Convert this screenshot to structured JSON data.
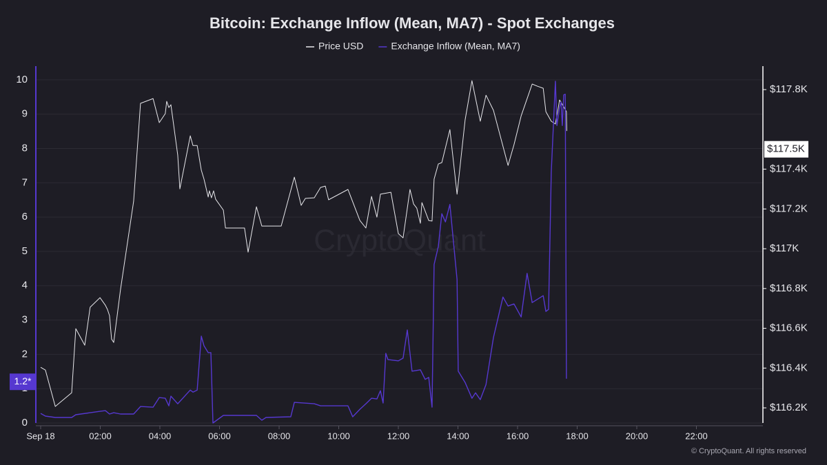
{
  "chart_data": {
    "type": "line",
    "title": "Bitcoin: Exchange Inflow (Mean, MA7) - Spot Exchanges",
    "watermark": "CryptoQuant",
    "footer": "© CryptoQuant. All rights reserved",
    "xlim": [
      0,
      24
    ],
    "xticks": [
      {
        "value": 0,
        "label": "Sep 18"
      },
      {
        "value": 2,
        "label": "02:00"
      },
      {
        "value": 4,
        "label": "04:00"
      },
      {
        "value": 6,
        "label": "06:00"
      },
      {
        "value": 8,
        "label": "08:00"
      },
      {
        "value": 10,
        "label": "10:00"
      },
      {
        "value": 12,
        "label": "12:00"
      },
      {
        "value": 14,
        "label": "14:00"
      },
      {
        "value": 16,
        "label": "16:00"
      },
      {
        "value": 18,
        "label": "18:00"
      },
      {
        "value": 20,
        "label": "20:00"
      },
      {
        "value": 22,
        "label": "22:00"
      }
    ],
    "ylim": [
      0,
      10.4
    ],
    "yticks": [
      0,
      1,
      2,
      3,
      4,
      5,
      6,
      7,
      8,
      9,
      10
    ],
    "y2lim": [
      116124,
      117918
    ],
    "y2ticks": [
      {
        "value": 116200,
        "label": "$116.2K"
      },
      {
        "value": 116400,
        "label": "$116.4K"
      },
      {
        "value": 116600,
        "label": "$116.6K"
      },
      {
        "value": 116800,
        "label": "$116.8K"
      },
      {
        "value": 117000,
        "label": "$117K"
      },
      {
        "value": 117200,
        "label": "$117.2K"
      },
      {
        "value": 117400,
        "label": "$117.4K"
      },
      {
        "value": 117800,
        "label": "$117.8K"
      }
    ],
    "grid": true,
    "series": [
      {
        "name": "Price USD",
        "color": "#e8e8ec",
        "axis": "y2",
        "x": [
          0,
          0.16,
          0.49,
          1.04,
          1.18,
          1.48,
          1.66,
          1.99,
          2.17,
          2.24,
          2.31,
          2.38,
          2.45,
          2.68,
          3.12,
          3.35,
          3.77,
          3.98,
          4.18,
          4.23,
          4.3,
          4.37,
          4.6,
          4.67,
          5.02,
          5.11,
          5.25,
          5.39,
          5.48,
          5.62,
          5.66,
          5.73,
          5.8,
          5.87,
          6.13,
          6.2,
          6.84,
          6.96,
          7.24,
          7.42,
          8.07,
          8.51,
          8.74,
          8.88,
          9.18,
          9.39,
          9.55,
          9.66,
          10.31,
          10.71,
          10.91,
          11.1,
          11.28,
          11.4,
          11.49,
          11.75,
          12.0,
          12.16,
          12.39,
          12.51,
          12.62,
          12.74,
          12.79,
          13.02,
          13.13,
          13.2,
          13.34,
          13.46,
          13.73,
          13.97,
          14.24,
          14.47,
          14.75,
          14.94,
          15.19,
          15.68,
          15.88,
          16.12,
          16.49,
          16.67,
          16.86,
          16.95,
          17.13,
          17.27,
          17.41,
          17.55,
          17.64,
          17.65
        ],
        "values": [
          116404,
          116390,
          116207,
          116276,
          116598,
          116515,
          116706,
          116754,
          116716,
          116695,
          116664,
          116546,
          116529,
          116796,
          117239,
          117731,
          117755,
          117634,
          117679,
          117741,
          117710,
          117724,
          117471,
          117301,
          117568,
          117519,
          117519,
          117395,
          117350,
          117260,
          117291,
          117256,
          117291,
          117249,
          117194,
          117104,
          117104,
          116983,
          117211,
          117114,
          117114,
          117360,
          117218,
          117253,
          117256,
          117308,
          117315,
          117246,
          117298,
          117142,
          117104,
          117263,
          117159,
          117274,
          117277,
          117284,
          117076,
          117055,
          117298,
          117225,
          117204,
          117128,
          117232,
          117142,
          117139,
          117350,
          117426,
          117433,
          117599,
          117274,
          117648,
          117845,
          117641,
          117772,
          117696,
          117419,
          117523,
          117668,
          117828,
          117817,
          117807,
          117689,
          117641,
          117627,
          117748,
          117713,
          117689,
          117592
        ]
      },
      {
        "name": "Exchange Inflow (Mean, MA7)",
        "color": "#5638d0",
        "axis": "y",
        "x": [
          0,
          0.16,
          0.49,
          1.04,
          1.18,
          1.66,
          1.99,
          2.17,
          2.31,
          2.45,
          2.68,
          3.12,
          3.35,
          3.77,
          3.98,
          4.18,
          4.3,
          4.37,
          4.6,
          5.02,
          5.11,
          5.25,
          5.39,
          5.48,
          5.62,
          5.71,
          5.78,
          6.13,
          7.24,
          7.42,
          7.56,
          8.39,
          8.51,
          9.18,
          9.39,
          10.31,
          10.47,
          10.71,
          10.91,
          11.1,
          11.28,
          11.4,
          11.49,
          11.58,
          11.65,
          12.0,
          12.16,
          12.3,
          12.46,
          12.74,
          12.9,
          13.02,
          13.13,
          13.2,
          13.34,
          13.46,
          13.58,
          13.73,
          13.97,
          14.01,
          14.24,
          14.47,
          14.59,
          14.75,
          14.94,
          15.19,
          15.51,
          15.68,
          15.88,
          16.12,
          16.32,
          16.49,
          16.86,
          16.95,
          17.04,
          17.13,
          17.27,
          17.32,
          17.41,
          17.46,
          17.5,
          17.55,
          17.6,
          17.64
        ],
        "values": [
          0.28,
          0.2,
          0.16,
          0.16,
          0.24,
          0.3,
          0.34,
          0.36,
          0.26,
          0.3,
          0.26,
          0.26,
          0.48,
          0.46,
          0.74,
          0.72,
          0.5,
          0.78,
          0.56,
          0.96,
          0.9,
          0.96,
          2.53,
          2.25,
          2.05,
          2.05,
          0,
          0.22,
          0.22,
          0.08,
          0.16,
          0.18,
          0.6,
          0.56,
          0.5,
          0.5,
          0.18,
          0.4,
          0.56,
          0.72,
          0.7,
          0.94,
          0.58,
          2.03,
          1.85,
          1.81,
          1.89,
          2.71,
          1.51,
          1.55,
          1.27,
          1.33,
          0.46,
          4.62,
          5.14,
          6.1,
          5.86,
          6.37,
          4.18,
          1.51,
          1.18,
          0.72,
          0.88,
          0.68,
          1.12,
          2.49,
          3.67,
          3.41,
          3.47,
          3.09,
          4.36,
          3.51,
          3.71,
          3.25,
          3.31,
          7.31,
          9.96,
          8.67,
          9.2,
          9.36,
          8.67,
          9.56,
          9.58,
          1.29
        ]
      }
    ],
    "annotations": [
      {
        "label": "1.2*",
        "value": 1.2,
        "axis": "y"
      },
      {
        "label": "$117.5K",
        "value": 117500,
        "axis": "y2"
      }
    ]
  }
}
